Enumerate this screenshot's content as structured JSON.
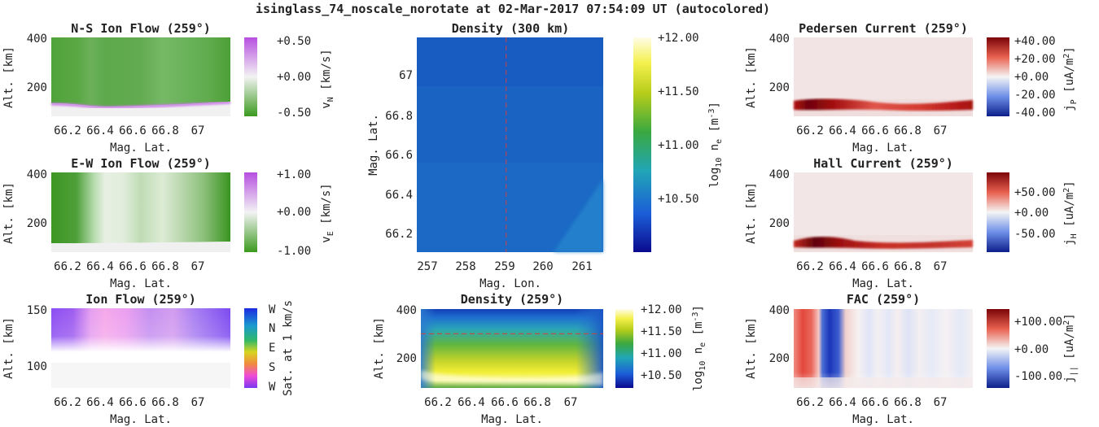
{
  "figure": {
    "title": "isinglass_74_noscale_norotate at 02-Mar-2017 07:54:09 UT (autocolored)"
  },
  "colors": {
    "green": "#3a9a1e",
    "purple": "#b64fe0",
    "jet_blue": "#1f6fc8",
    "red": "#b40e0e",
    "blue": "#1b2fa0",
    "reference_line": "#d04040"
  },
  "chart_data": [
    {
      "id": "ns-flow",
      "type": "heatmap",
      "title": "N-S Ion Flow (259°)",
      "xlabel": "Mag. Lat.",
      "ylabel": "Alt. [km]",
      "x_ticks": [
        "66.2",
        "66.4",
        "66.6",
        "66.8",
        "67"
      ],
      "y_ticks": [
        "400",
        "200"
      ],
      "xlim": [
        66.1,
        67.2
      ],
      "ylim": [
        80,
        400
      ],
      "colorbar": {
        "label": "v_N [km/s]",
        "label_main": "v",
        "label_sub": "N",
        "label_unit": " [km/s]",
        "ticks": [
          "+0.50",
          "+0.00",
          "-0.50"
        ],
        "range": [
          -0.6,
          0.6
        ],
        "colormap": "green-white-purple"
      }
    },
    {
      "id": "ew-flow",
      "type": "heatmap",
      "title": "E-W Ion Flow (259°)",
      "xlabel": "Mag. Lat.",
      "ylabel": "Alt. [km]",
      "x_ticks": [
        "66.2",
        "66.4",
        "66.6",
        "66.8",
        "67"
      ],
      "y_ticks": [
        "400",
        "200"
      ],
      "xlim": [
        66.1,
        67.2
      ],
      "ylim": [
        80,
        400
      ],
      "colorbar": {
        "label": "v_E [km/s]",
        "label_main": "v",
        "label_sub": "E",
        "label_unit": " [km/s]",
        "ticks": [
          "+1.00",
          "+0.00",
          "-1.00"
        ],
        "range": [
          -1.2,
          1.2
        ],
        "colormap": "green-white-purple"
      }
    },
    {
      "id": "ion-flow",
      "type": "heatmap",
      "title": "Ion Flow (259°)",
      "xlabel": "Mag. Lat.",
      "ylabel": "Alt. [km]",
      "x_ticks": [
        "66.2",
        "66.4",
        "66.6",
        "66.8",
        "67"
      ],
      "y_ticks": [
        "150",
        "100"
      ],
      "xlim": [
        66.1,
        67.2
      ],
      "ylim": [
        80,
        150
      ],
      "colorbar": {
        "label": "Sat. at 1 km/s",
        "ticks": [
          "W",
          "N",
          "E",
          "S",
          "W"
        ],
        "colormap": "direction-hue"
      }
    },
    {
      "id": "density-300",
      "type": "heatmap",
      "title": "Density (300 km)",
      "xlabel": "Mag. Lon.",
      "ylabel": "Mag. Lat.",
      "x_ticks": [
        "257",
        "258",
        "259",
        "260",
        "261"
      ],
      "y_ticks": [
        "67",
        "66.8",
        "66.6",
        "66.4",
        "66.2"
      ],
      "xlim": [
        256.7,
        261.5
      ],
      "ylim": [
        66.1,
        67.2
      ],
      "reference_line": {
        "axis": "x",
        "value": 259
      },
      "colorbar": {
        "label": "log10 n_e [m^-3]",
        "label_main": "log",
        "label_sub": "10",
        "label_var": " n",
        "label_sub2": "e",
        "label_unit": " [m",
        "label_sup": "-3",
        "label_close": "]",
        "ticks": [
          "+12.00",
          "+11.50",
          "+11.00",
          "+10.50"
        ],
        "tick_values": [
          12.0,
          11.5,
          11.0,
          10.5
        ],
        "range": [
          10.0,
          12.0
        ],
        "colormap": "jet"
      }
    },
    {
      "id": "density-259",
      "type": "heatmap",
      "title": "Density (259°)",
      "xlabel": "Mag. Lat.",
      "ylabel": "Alt. [km]",
      "x_ticks": [
        "66.2",
        "66.4",
        "66.6",
        "66.8",
        "67"
      ],
      "y_ticks": [
        "400",
        "200"
      ],
      "xlim": [
        66.1,
        67.2
      ],
      "ylim": [
        80,
        400
      ],
      "reference_line": {
        "axis": "y",
        "value": 300
      },
      "colorbar": {
        "label": "log10 n_e [m^-3]",
        "label_main": "log",
        "label_sub": "10",
        "label_var": " n",
        "label_sub2": "e",
        "label_unit": " [m",
        "label_sup": "-3",
        "label_close": "]",
        "ticks": [
          "+12.00",
          "+11.50",
          "+11.00",
          "+10.50"
        ],
        "tick_values": [
          12.0,
          11.5,
          11.0,
          10.5
        ],
        "range": [
          10.2,
          12.0
        ],
        "colormap": "jet"
      }
    },
    {
      "id": "pedersen",
      "type": "heatmap",
      "title": "Pedersen Current (259°)",
      "xlabel": "Mag. Lat.",
      "ylabel": "Alt. [km]",
      "x_ticks": [
        "66.2",
        "66.4",
        "66.6",
        "66.8",
        "67"
      ],
      "y_ticks": [
        "400",
        "200"
      ],
      "xlim": [
        66.1,
        67.2
      ],
      "ylim": [
        80,
        400
      ],
      "colorbar": {
        "label": "j_P [uA/m^2]",
        "label_main": "j",
        "label_sub": "P",
        "label_unit": " [uA/m",
        "label_sup": "2",
        "label_close": "]",
        "ticks": [
          "+40.00",
          "+20.00",
          "+0.00",
          "-20.00",
          "-40.00"
        ],
        "range": [
          -45,
          45
        ],
        "colormap": "blue-white-red"
      }
    },
    {
      "id": "hall",
      "type": "heatmap",
      "title": "Hall Current (259°)",
      "xlabel": "Mag. Lat.",
      "ylabel": "Alt. [km]",
      "x_ticks": [
        "66.2",
        "66.4",
        "66.6",
        "66.8",
        "67"
      ],
      "y_ticks": [
        "400",
        "200"
      ],
      "xlim": [
        66.1,
        67.2
      ],
      "ylim": [
        80,
        400
      ],
      "colorbar": {
        "label": "j_H [uA/m^2]",
        "label_main": "j",
        "label_sub": "H",
        "label_unit": " [uA/m",
        "label_sup": "2",
        "label_close": "]",
        "ticks": [
          "+50.00",
          "+0.00",
          "-50.00"
        ],
        "range": [
          -90,
          90
        ],
        "colormap": "blue-white-red"
      }
    },
    {
      "id": "fac",
      "type": "heatmap",
      "title": "FAC (259°)",
      "xlabel": "Mag. Lat.",
      "ylabel": "Alt. [km]",
      "x_ticks": [
        "66.2",
        "66.4",
        "66.6",
        "66.8",
        "67"
      ],
      "y_ticks": [
        "400",
        "200"
      ],
      "xlim": [
        66.1,
        67.2
      ],
      "ylim": [
        80,
        400
      ],
      "colorbar": {
        "label": "j_|| [uA/m^2]",
        "label_main": "j",
        "label_sub": "||",
        "label_unit": " [uA/m",
        "label_sup": "2",
        "label_close": "]",
        "ticks": [
          "+100.00",
          "+0.00",
          "-100.00"
        ],
        "range": [
          -160,
          160
        ],
        "colormap": "blue-white-red"
      }
    }
  ]
}
